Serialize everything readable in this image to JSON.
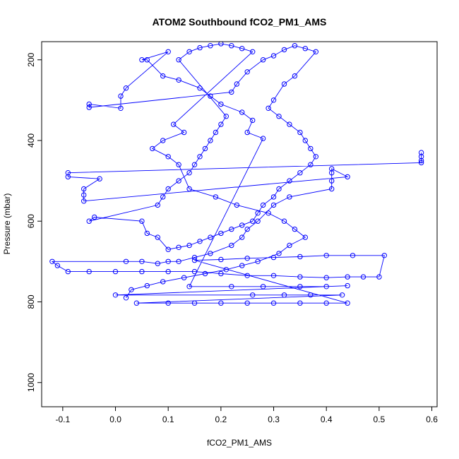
{
  "chart_data": {
    "type": "scatter",
    "title": "ATOM2 Southbound fCO2_PM1_AMS",
    "xlabel": "fCO2_PM1_AMS",
    "ylabel": "Pressure (mbar)",
    "xlim": [
      -0.14,
      0.61
    ],
    "ylim": [
      1060,
      155
    ],
    "y_inverted": true,
    "grid": false,
    "legend": "none",
    "x_ticks": [
      -0.1,
      0.0,
      0.1,
      0.2,
      0.3,
      0.4,
      0.5,
      0.6
    ],
    "x_tick_labels": [
      "-0.1",
      "0.0",
      "0.1",
      "0.2",
      "0.3",
      "0.4",
      "0.5",
      "0.6"
    ],
    "y_ticks": [
      200,
      400,
      600,
      800,
      1000
    ],
    "y_tick_labels": [
      "200",
      "400",
      "600",
      "800",
      "1000"
    ],
    "colors": {
      "series": "#0000ff"
    },
    "series": [
      {
        "points": [
          [
            0.58,
            430
          ],
          [
            0.58,
            440
          ],
          [
            0.58,
            450
          ],
          [
            0.58,
            455
          ],
          [
            -0.09,
            480
          ],
          [
            -0.09,
            490
          ],
          [
            -0.03,
            495
          ],
          [
            -0.06,
            520
          ],
          [
            -0.06,
            535
          ],
          [
            -0.06,
            550
          ],
          [
            0.44,
            490
          ],
          [
            0.41,
            470
          ],
          [
            0.41,
            480
          ],
          [
            0.41,
            500
          ],
          [
            0.41,
            520
          ],
          [
            0.33,
            540
          ],
          [
            0.3,
            560
          ],
          [
            0.27,
            600
          ],
          [
            0.25,
            620
          ],
          [
            0.24,
            640
          ],
          [
            0.22,
            660
          ],
          [
            0.18,
            680
          ],
          [
            0.15,
            690
          ],
          [
            0.12,
            700
          ],
          [
            0.1,
            700
          ],
          [
            0.08,
            705
          ],
          [
            0.05,
            700
          ],
          [
            0.02,
            700
          ],
          [
            -0.12,
            700
          ],
          [
            -0.11,
            710
          ],
          [
            -0.09,
            725
          ],
          [
            -0.05,
            725
          ],
          [
            0.0,
            725
          ],
          [
            0.05,
            725
          ],
          [
            0.1,
            725
          ],
          [
            0.15,
            725
          ],
          [
            0.2,
            730
          ],
          [
            0.25,
            735
          ],
          [
            0.3,
            735
          ],
          [
            0.35,
            738
          ],
          [
            0.4,
            740
          ],
          [
            0.44,
            738
          ],
          [
            0.47,
            738
          ],
          [
            0.5,
            738
          ],
          [
            0.51,
            685
          ],
          [
            0.45,
            685
          ],
          [
            0.4,
            685
          ],
          [
            0.35,
            688
          ],
          [
            0.3,
            690
          ],
          [
            0.25,
            692
          ],
          [
            0.2,
            695
          ],
          [
            0.15,
            697
          ],
          [
            0.44,
            803
          ],
          [
            0.4,
            803
          ],
          [
            0.35,
            803
          ],
          [
            0.3,
            803
          ],
          [
            0.25,
            803
          ],
          [
            0.2,
            803
          ],
          [
            0.15,
            803
          ],
          [
            0.1,
            803
          ],
          [
            0.04,
            803
          ],
          [
            0.43,
            783
          ],
          [
            0.37,
            783
          ],
          [
            0.32,
            783
          ],
          [
            0.26,
            783
          ],
          [
            0.0,
            783
          ],
          [
            0.44,
            760
          ],
          [
            0.4,
            762
          ],
          [
            0.35,
            762
          ],
          [
            0.28,
            762
          ],
          [
            0.22,
            762
          ],
          [
            0.14,
            762
          ],
          [
            0.28,
            395
          ],
          [
            0.25,
            380
          ],
          [
            0.26,
            350
          ],
          [
            0.24,
            330
          ],
          [
            0.2,
            310
          ],
          [
            0.18,
            290
          ],
          [
            0.16,
            270
          ],
          [
            0.12,
            250
          ],
          [
            0.09,
            240
          ],
          [
            0.06,
            200
          ],
          [
            0.05,
            200
          ],
          [
            0.1,
            180
          ],
          [
            0.02,
            270
          ],
          [
            0.01,
            290
          ],
          [
            0.01,
            320
          ],
          [
            -0.05,
            310
          ],
          [
            -0.05,
            318
          ],
          [
            0.22,
            280
          ],
          [
            0.23,
            260
          ],
          [
            0.25,
            230
          ],
          [
            0.28,
            200
          ],
          [
            0.3,
            190
          ],
          [
            0.32,
            175
          ],
          [
            0.34,
            165
          ],
          [
            0.36,
            172
          ],
          [
            0.38,
            180
          ],
          [
            0.34,
            240
          ],
          [
            0.32,
            260
          ],
          [
            0.3,
            300
          ],
          [
            0.29,
            320
          ],
          [
            0.31,
            340
          ],
          [
            0.33,
            360
          ],
          [
            0.35,
            380
          ],
          [
            0.36,
            400
          ],
          [
            0.37,
            420
          ],
          [
            0.38,
            440
          ],
          [
            0.37,
            460
          ],
          [
            0.35,
            480
          ],
          [
            0.33,
            500
          ],
          [
            0.31,
            520
          ],
          [
            0.3,
            540
          ],
          [
            0.28,
            560
          ],
          [
            0.27,
            580
          ],
          [
            0.26,
            600
          ],
          [
            0.24,
            610
          ],
          [
            0.22,
            620
          ],
          [
            0.2,
            630
          ],
          [
            0.18,
            640
          ],
          [
            0.16,
            650
          ],
          [
            0.14,
            660
          ],
          [
            0.12,
            665
          ],
          [
            0.1,
            670
          ],
          [
            0.08,
            640
          ],
          [
            0.06,
            630
          ],
          [
            0.05,
            600
          ],
          [
            -0.04,
            590
          ],
          [
            -0.05,
            600
          ],
          [
            0.08,
            560
          ],
          [
            0.09,
            540
          ],
          [
            0.1,
            520
          ],
          [
            0.12,
            500
          ],
          [
            0.14,
            480
          ],
          [
            0.15,
            460
          ],
          [
            0.16,
            440
          ],
          [
            0.17,
            420
          ],
          [
            0.18,
            400
          ],
          [
            0.19,
            380
          ],
          [
            0.2,
            360
          ],
          [
            0.21,
            340
          ],
          [
            0.12,
            200
          ],
          [
            0.14,
            180
          ],
          [
            0.16,
            170
          ],
          [
            0.18,
            165
          ],
          [
            0.2,
            160
          ],
          [
            0.22,
            165
          ],
          [
            0.24,
            172
          ],
          [
            0.26,
            180
          ],
          [
            0.11,
            360
          ],
          [
            0.13,
            380
          ],
          [
            0.09,
            400
          ],
          [
            0.07,
            420
          ],
          [
            0.1,
            440
          ],
          [
            0.12,
            460
          ],
          [
            0.14,
            520
          ],
          [
            0.19,
            540
          ],
          [
            0.23,
            560
          ],
          [
            0.29,
            580
          ],
          [
            0.32,
            600
          ],
          [
            0.34,
            620
          ],
          [
            0.36,
            640
          ],
          [
            0.33,
            660
          ],
          [
            0.31,
            680
          ],
          [
            0.27,
            700
          ],
          [
            0.24,
            710
          ],
          [
            0.21,
            720
          ],
          [
            0.17,
            730
          ],
          [
            0.13,
            740
          ],
          [
            0.09,
            750
          ],
          [
            0.06,
            760
          ],
          [
            0.03,
            770
          ],
          [
            0.02,
            790
          ]
        ]
      }
    ]
  }
}
